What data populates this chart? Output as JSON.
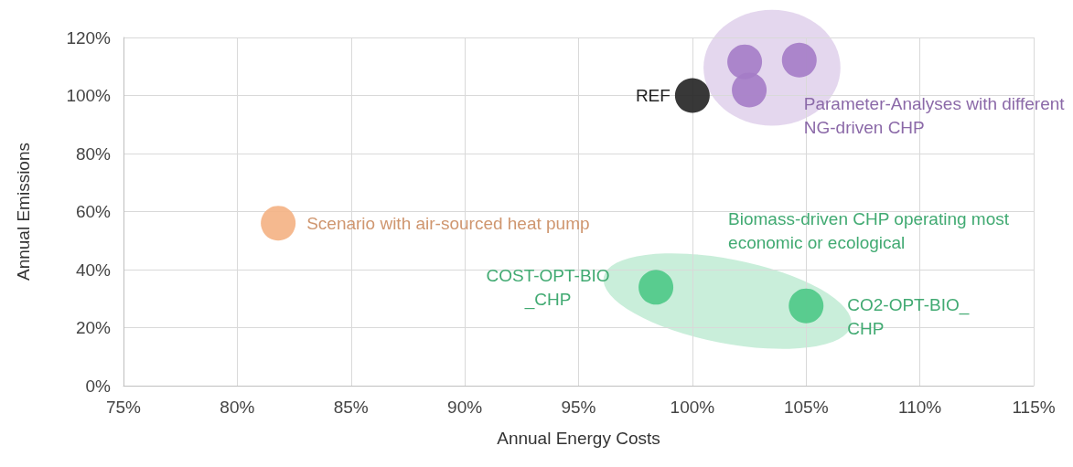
{
  "chart_data": {
    "type": "scatter",
    "xlabel": "Annual Energy Costs",
    "ylabel": "Annual Emissions",
    "xlim": [
      75,
      115
    ],
    "xticks": [
      {
        "value": 75,
        "label": "75%"
      },
      {
        "value": 80,
        "label": "80%"
      },
      {
        "value": 85,
        "label": "85%"
      },
      {
        "value": 90,
        "label": "90%"
      },
      {
        "value": 95,
        "label": "95%"
      },
      {
        "value": 100,
        "label": "100%"
      },
      {
        "value": 105,
        "label": "105%"
      },
      {
        "value": 110,
        "label": "110%"
      },
      {
        "value": 115,
        "label": "115%"
      }
    ],
    "ylim": [
      0,
      120
    ],
    "yticks": [
      {
        "value": 0,
        "label": "0%"
      },
      {
        "value": 20,
        "label": "20%"
      },
      {
        "value": 40,
        "label": "40%"
      },
      {
        "value": 60,
        "label": "60%"
      },
      {
        "value": 80,
        "label": "80%"
      },
      {
        "value": 100,
        "label": "100%"
      },
      {
        "value": 120,
        "label": "120%"
      }
    ],
    "grid": true,
    "legend": false,
    "marker": "circle",
    "series": [
      {
        "name": "REF",
        "color": "#222222",
        "x": [
          100
        ],
        "values": [
          100
        ]
      },
      {
        "name": "Scenario with air-sourced heat pump",
        "color": "#f4b183",
        "x": [
          81.8
        ],
        "values": [
          56
        ]
      },
      {
        "name": "Parameter-Analyses with different NG-driven CHP",
        "color": "#a47cc6",
        "x": [
          102.3,
          104.7,
          102.5
        ],
        "values": [
          111.6,
          112.2,
          101.9
        ]
      },
      {
        "name": "Biomass-driven CHP operating most economic or ecological",
        "color": "#4cc886",
        "x": [
          98.4,
          105.0
        ],
        "values": [
          33.9,
          27.5
        ]
      }
    ],
    "annotations": [
      {
        "text": "COST-OPT-BIO_CHP",
        "x": 98.4,
        "y": 33.9
      },
      {
        "text": "CO2-OPT-BIO_CHP",
        "x": 105.0,
        "y": 27.5
      }
    ]
  }
}
